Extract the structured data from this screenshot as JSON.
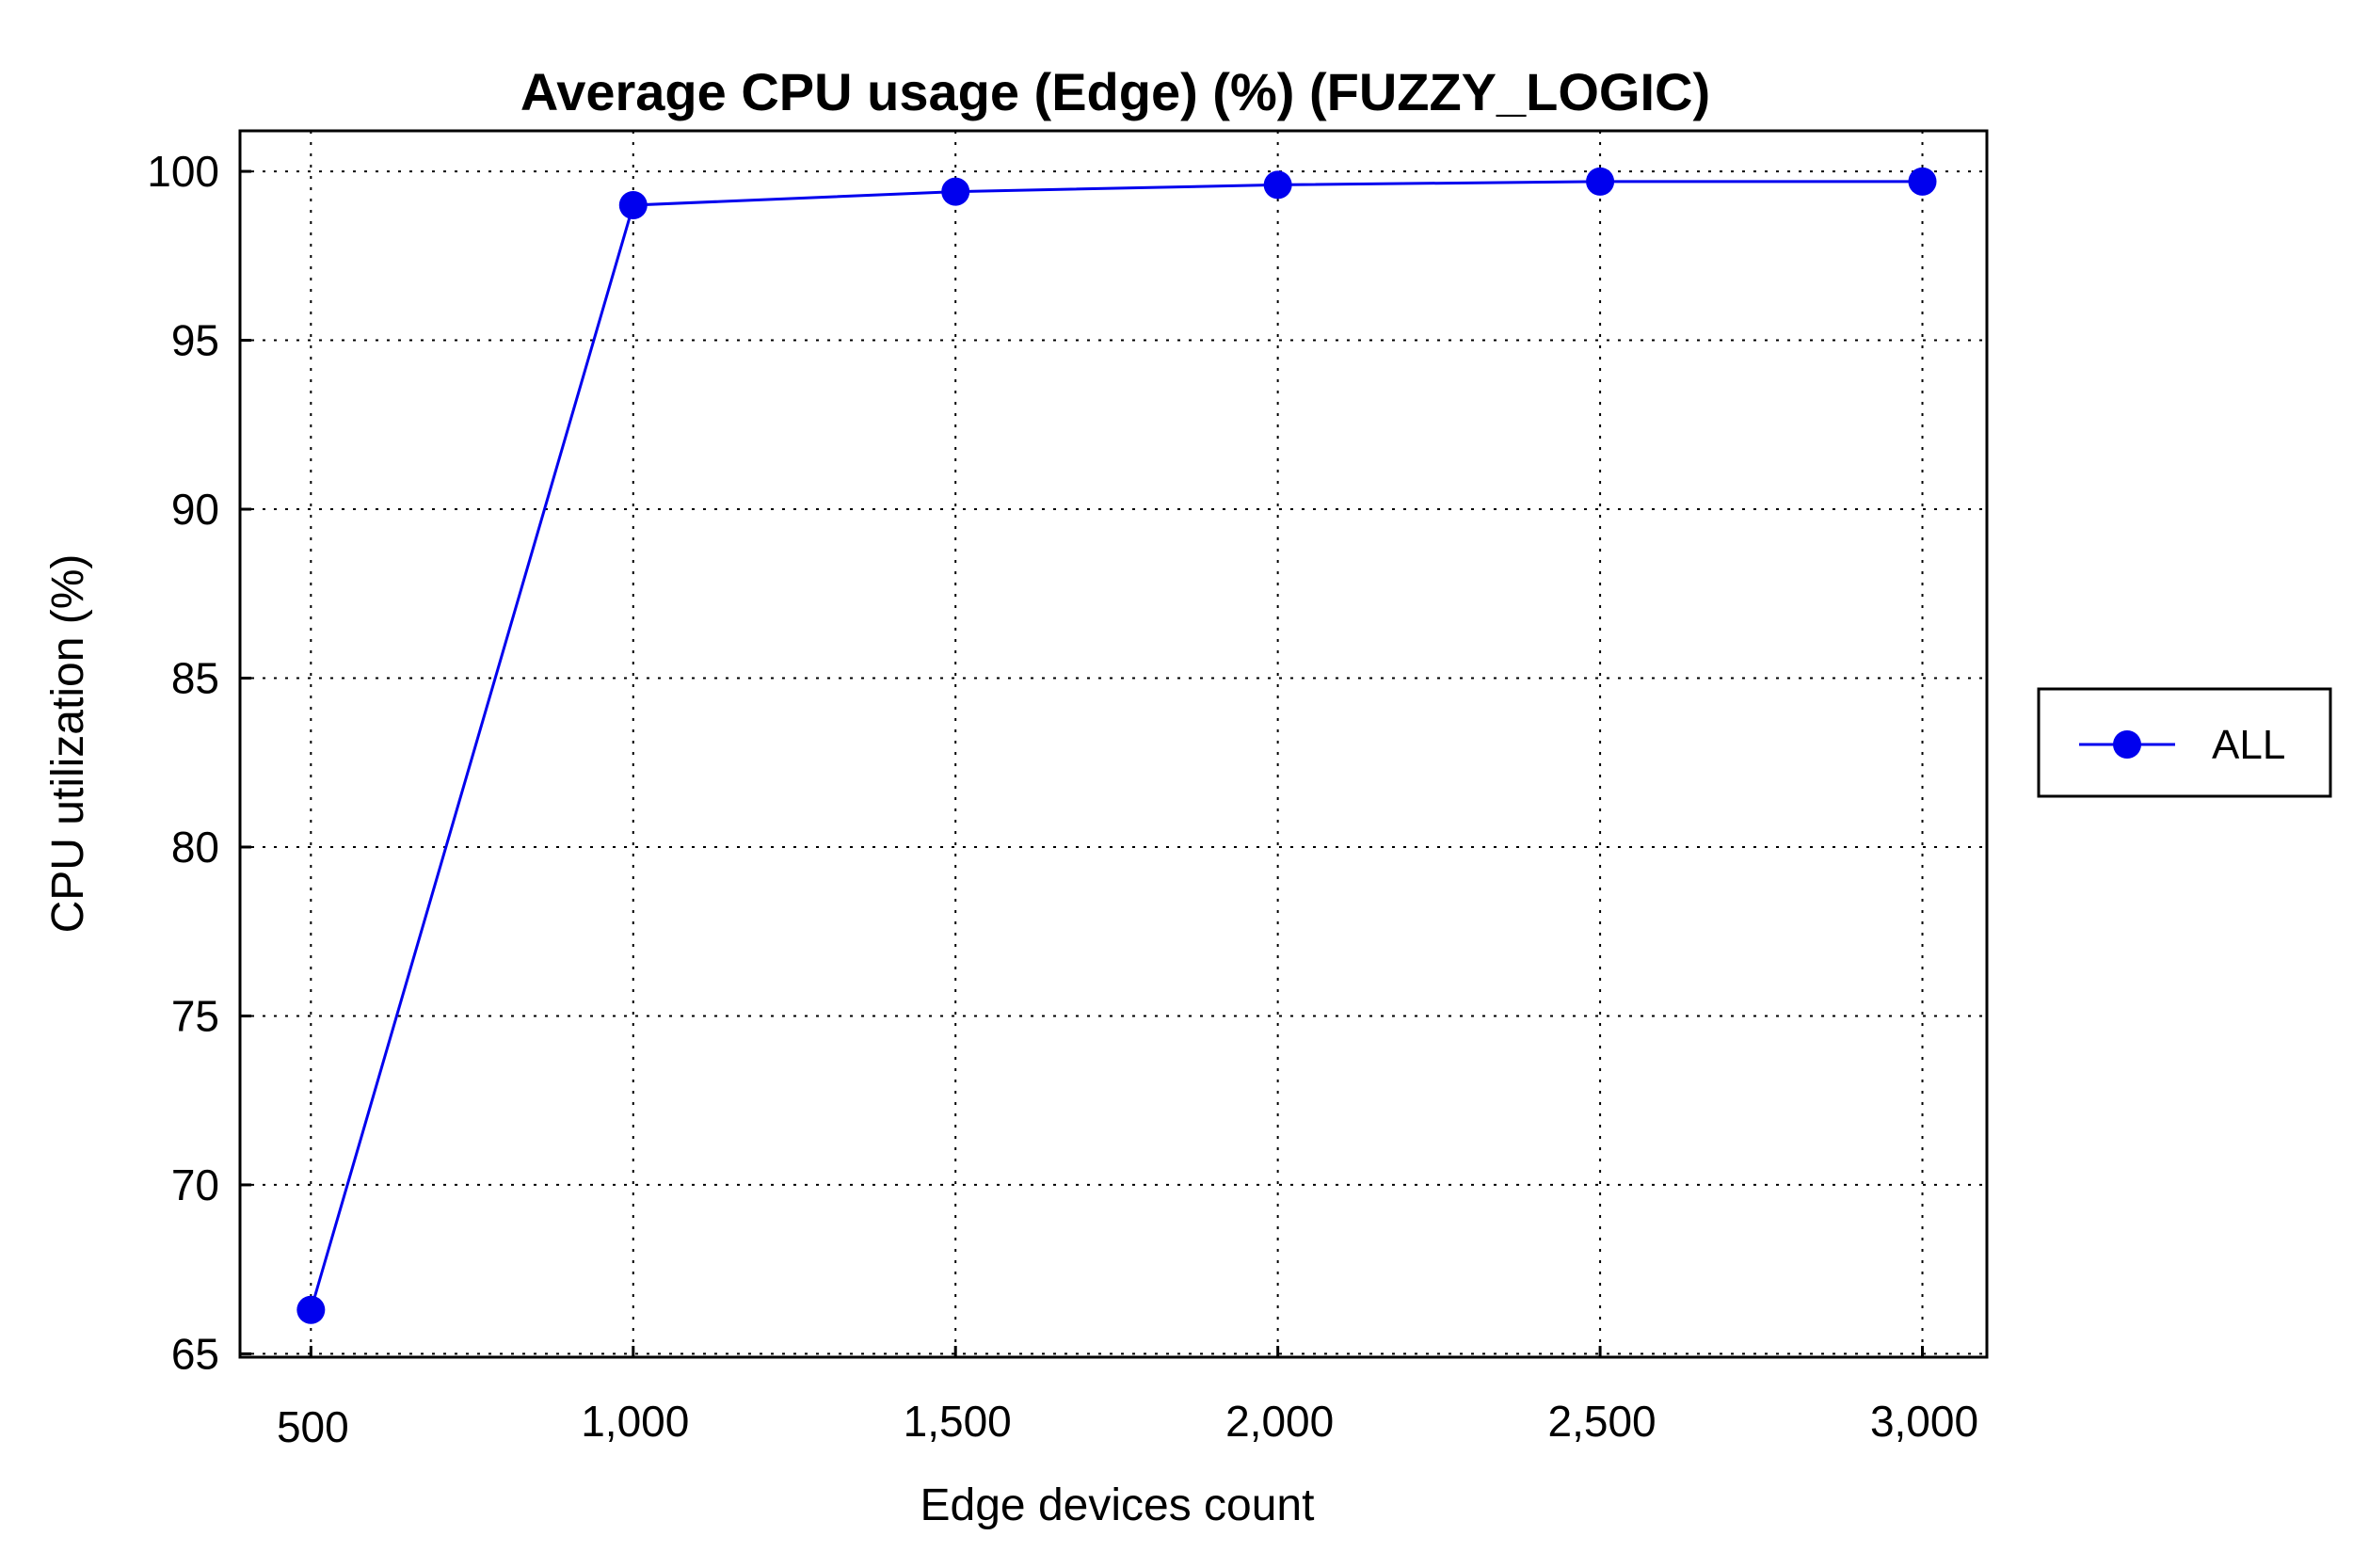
{
  "chart_data": {
    "type": "line",
    "title": "Average CPU usage (Edge) (%) (FUZZY_LOGIC)",
    "xlabel": "Edge devices count",
    "ylabel": "CPU utilization (%)",
    "x": [
      500,
      1000,
      1500,
      2000,
      2500,
      3000
    ],
    "x_tick_values": [
      500,
      1000,
      1500,
      2000,
      2500,
      3000
    ],
    "x_tick_labels": [
      "500",
      "1,000",
      "1,500",
      "2,000",
      "2,500",
      "3,000"
    ],
    "xlim": [
      390,
      3100
    ],
    "y_tick_values": [
      65,
      70,
      75,
      80,
      85,
      90,
      95,
      100
    ],
    "y_tick_labels": [
      "65",
      "70",
      "75",
      "80",
      "85",
      "90",
      "95",
      "100"
    ],
    "ylim": [
      64.9,
      101.2
    ],
    "grid": true,
    "legend_position": "right",
    "series": [
      {
        "name": "ALL",
        "color": "#0000ee",
        "marker": "circle",
        "values": [
          66.3,
          99.0,
          99.4,
          99.6,
          99.7,
          99.7
        ]
      }
    ]
  }
}
